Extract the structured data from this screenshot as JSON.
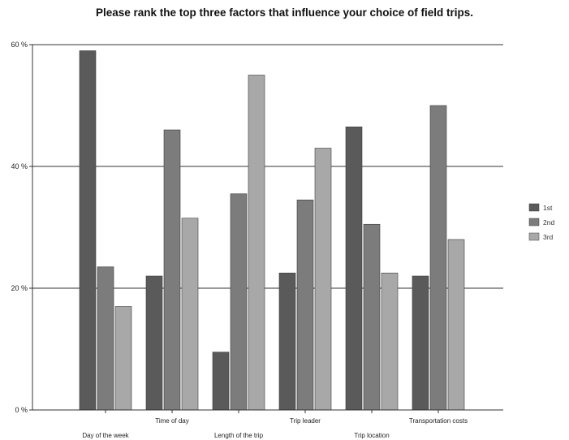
{
  "chart_data": {
    "type": "bar",
    "title": "Please rank the top three factors that influence your choice of field trips.",
    "categories": [
      "Day of the week",
      "Time of day",
      "Length of the trip",
      "Trip leader",
      "Trip location",
      "Transportation costs"
    ],
    "series": [
      {
        "name": "1st",
        "values": [
          59,
          22,
          9.5,
          22.5,
          46.5,
          22
        ],
        "color": "#5a5a5a"
      },
      {
        "name": "2nd",
        "values": [
          23.5,
          46,
          35.5,
          34.5,
          30.5,
          50
        ],
        "color": "#7c7c7c"
      },
      {
        "name": "3rd",
        "values": [
          17,
          31.5,
          55,
          43,
          22.5,
          28
        ],
        "color": "#a8a8a8"
      }
    ],
    "yticks": [
      "0 %",
      "20 %",
      "40 %",
      "60 %"
    ],
    "ylim": [
      0,
      60
    ],
    "xlabel": "",
    "ylabel": "",
    "grid": true,
    "legend_position": "right"
  }
}
